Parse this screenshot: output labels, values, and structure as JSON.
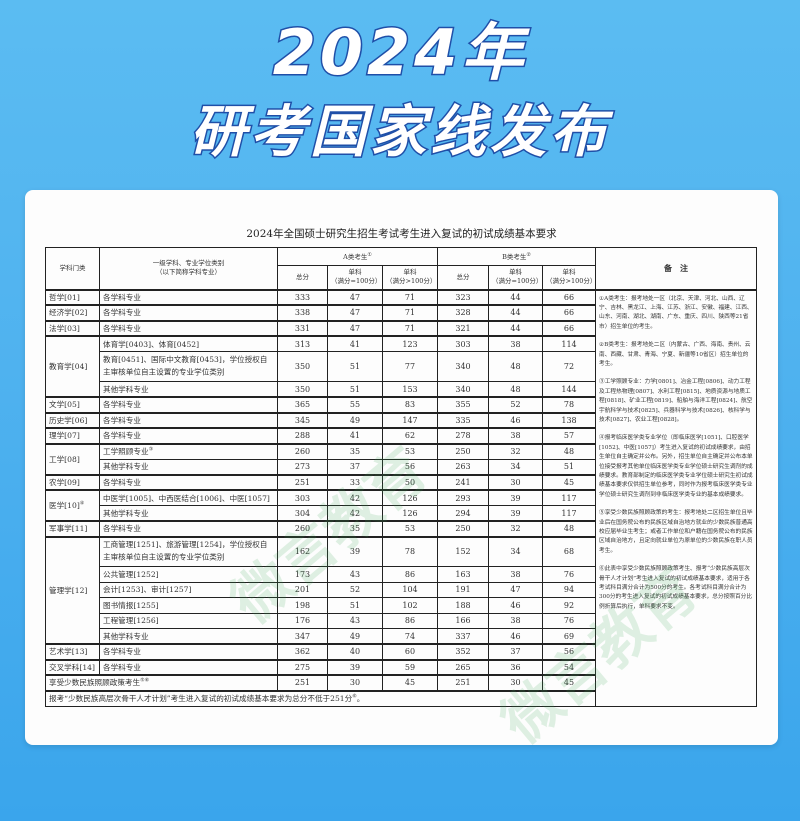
{
  "hero": {
    "line1": "2024年",
    "line2": "研考国家线发布"
  },
  "doc": {
    "title": "2024年全国硕士研究生招生考试考生进入复试的初试成绩基本要求"
  },
  "watermark": "微言教育",
  "header": {
    "category": "学科门类",
    "major_line1": "一级学科、专业学位类别",
    "major_line2": "（以下简称学科专业）",
    "a_group": "A类考生",
    "a_sup": "①",
    "b_group": "B类考生",
    "b_sup": "②",
    "total": "总分",
    "single_100_l1": "单科",
    "single_100_l2": "（满分=100分）",
    "single_gt100_l1": "单科",
    "single_gt100_l2": "（满分>100分）",
    "remarks": "备　注"
  },
  "categories": [
    {
      "name": "哲学[01]",
      "sup": "",
      "rows": [
        {
          "major": "各学科专业",
          "a": [
            "333",
            "47",
            "71"
          ],
          "b": [
            "323",
            "44",
            "66"
          ]
        }
      ]
    },
    {
      "name": "经济学[02]",
      "sup": "",
      "rows": [
        {
          "major": "各学科专业",
          "a": [
            "338",
            "47",
            "71"
          ],
          "b": [
            "328",
            "44",
            "66"
          ]
        }
      ]
    },
    {
      "name": "法学[03]",
      "sup": "",
      "rows": [
        {
          "major": "各学科专业",
          "a": [
            "331",
            "47",
            "71"
          ],
          "b": [
            "321",
            "44",
            "66"
          ]
        }
      ]
    },
    {
      "name": "教育学[04]",
      "sup": "",
      "rows": [
        {
          "major": "体育学[0403]、体育[0452]",
          "a": [
            "313",
            "41",
            "123"
          ],
          "b": [
            "303",
            "38",
            "114"
          ]
        },
        {
          "major": "教育[0451]、国际中文教育[0453]，学位授权自主审核单位自主设置的专业学位类别",
          "a": [
            "350",
            "51",
            "77"
          ],
          "b": [
            "340",
            "48",
            "72"
          ],
          "double": true
        },
        {
          "major": "其他学科专业",
          "a": [
            "350",
            "51",
            "153"
          ],
          "b": [
            "340",
            "48",
            "144"
          ]
        }
      ]
    },
    {
      "name": "文学[05]",
      "sup": "",
      "rows": [
        {
          "major": "各学科专业",
          "a": [
            "365",
            "55",
            "83"
          ],
          "b": [
            "355",
            "52",
            "78"
          ]
        }
      ]
    },
    {
      "name": "历史学[06]",
      "sup": "",
      "rows": [
        {
          "major": "各学科专业",
          "a": [
            "345",
            "49",
            "147"
          ],
          "b": [
            "335",
            "46",
            "138"
          ]
        }
      ]
    },
    {
      "name": "理学[07]",
      "sup": "",
      "rows": [
        {
          "major": "各学科专业",
          "a": [
            "288",
            "41",
            "62"
          ],
          "b": [
            "278",
            "38",
            "57"
          ]
        }
      ]
    },
    {
      "name": "工学[08]",
      "sup": "",
      "rows": [
        {
          "major": "工学照顾专业",
          "sup": "③",
          "a": [
            "260",
            "35",
            "53"
          ],
          "b": [
            "250",
            "32",
            "48"
          ]
        },
        {
          "major": "其他学科专业",
          "a": [
            "273",
            "37",
            "56"
          ],
          "b": [
            "263",
            "34",
            "51"
          ]
        }
      ]
    },
    {
      "name": "农学[09]",
      "sup": "",
      "rows": [
        {
          "major": "各学科专业",
          "a": [
            "251",
            "33",
            "50"
          ],
          "b": [
            "241",
            "30",
            "45"
          ]
        }
      ]
    },
    {
      "name": "医学[10]",
      "sup": "④",
      "rows": [
        {
          "major": "中医学[1005]、中西医结合[1006]、中医[1057]",
          "a": [
            "303",
            "42",
            "126"
          ],
          "b": [
            "293",
            "39",
            "117"
          ]
        },
        {
          "major": "其他学科专业",
          "a": [
            "304",
            "42",
            "126"
          ],
          "b": [
            "294",
            "39",
            "117"
          ]
        }
      ]
    },
    {
      "name": "军事学[11]",
      "sup": "",
      "rows": [
        {
          "major": "各学科专业",
          "a": [
            "260",
            "35",
            "53"
          ],
          "b": [
            "250",
            "32",
            "48"
          ]
        }
      ]
    },
    {
      "name": "管理学[12]",
      "sup": "",
      "rows": [
        {
          "major": "工商管理[1251]、旅游管理[1254]，学位授权自主审核单位自主设置的专业学位类别",
          "a": [
            "162",
            "39",
            "78"
          ],
          "b": [
            "152",
            "34",
            "68"
          ],
          "double": true
        },
        {
          "major": "公共管理[1252]",
          "a": [
            "173",
            "43",
            "86"
          ],
          "b": [
            "163",
            "38",
            "76"
          ]
        },
        {
          "major": "会计[1253]、审计[1257]",
          "a": [
            "201",
            "52",
            "104"
          ],
          "b": [
            "191",
            "47",
            "94"
          ]
        },
        {
          "major": "图书情报[1255]",
          "a": [
            "198",
            "51",
            "102"
          ],
          "b": [
            "188",
            "46",
            "92"
          ]
        },
        {
          "major": "工程管理[1256]",
          "a": [
            "176",
            "43",
            "86"
          ],
          "b": [
            "166",
            "38",
            "76"
          ]
        },
        {
          "major": "其他学科专业",
          "a": [
            "347",
            "49",
            "74"
          ],
          "b": [
            "337",
            "46",
            "69"
          ]
        }
      ]
    },
    {
      "name": "艺术学[13]",
      "sup": "",
      "rows": [
        {
          "major": "各学科专业",
          "a": [
            "362",
            "40",
            "60"
          ],
          "b": [
            "352",
            "37",
            "56"
          ]
        }
      ]
    },
    {
      "name": "交叉学科[14]",
      "sup": "",
      "rows": [
        {
          "major": "各学科专业",
          "a": [
            "275",
            "39",
            "59"
          ],
          "b": [
            "265",
            "36",
            "54"
          ]
        }
      ]
    }
  ],
  "minority": {
    "label": "享受少数民族照顾政策考生",
    "sup": "⑤⑥",
    "a": [
      "251",
      "30",
      "45"
    ],
    "b": [
      "251",
      "30",
      "45"
    ]
  },
  "footer": {
    "text": "报考“少数民族高层次骨干人才计划”考生进入复试的初试成绩基本要求为总分不低于251分",
    "sup": "⑥",
    "end": "。"
  },
  "remarks": [
    "①A类考生：报考地处一区（北京、天津、河北、山西、辽宁、吉林、黑龙江、上海、江苏、浙江、安徽、福建、江西、山东、河南、湖北、湖南、广东、重庆、四川、陕西等21省市）招生单位的考生。",
    "②B类考生：报考地处二区（内蒙古、广西、海南、贵州、云南、西藏、甘肃、青海、宁夏、新疆等10省区）招生单位的考生。",
    "③工学照顾专业：力学[0801]、冶金工程[0806]、动力工程及工程热物理[0807]、水利工程[0815]、地质资源与地质工程[0818]、矿业工程[0819]、船舶与海洋工程[0824]、航空宇航科学与技术[0825]、兵器科学与技术[0826]、核科学与技术[0827]、农业工程[0828]。",
    "④报考临床医学类专业学位（即临床医学[1051]、口腔医学[1052]、中医[1057]）考生进入复试的初试成绩要求，由招生单位自主确定并公布。另外，招生单位自主确定并公布本单位接受报考其他单位临床医学类专业学位硕士研究生调剂的成绩要求。教育部制定的临床医学类专业学位硕士研究生初试成绩基本要求仅供招生单位参考，同时作为报考临床医学类专业学位硕士研究生调剂到非临床医学类专业的基本成绩要求。",
    "⑤享受少数民族照顾政策的考生：报考地处二区招生单位且毕业后在国务院公布的民族区域自治地方就业的少数民族普通高校应届毕业生考生；或者工作单位和户籍在国务院公布的民族区域自治地方，且定向就业单位为原单位的少数民族在职人员考生。",
    "⑥此表中享受少数民族照顾政策考生、报考“少数民族高层次骨干人才计划”考生进入复试的初试成绩基本要求，适用于各考试科目满分合计为500分的考生。各考试科目满分合计为300分的考生进入复试的初试成绩基本要求，总分按照百分比例折算后执行，单科要求不变。"
  ]
}
